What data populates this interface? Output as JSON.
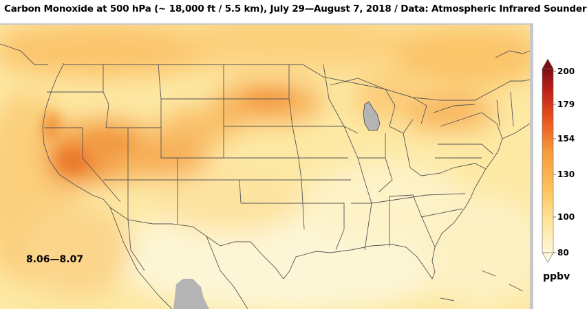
{
  "title": "Carbon Monoxide at 500 hPa (~ 18,000 ft / 5.5 km), July 29—August 7, 2018 / Data: Atmospheric Infrared Sounder",
  "date_label": "8.06—8.07",
  "colorbar": {
    "unit": "ppbv",
    "ticks": [
      "200",
      "179",
      "154",
      "130",
      "100",
      "80"
    ],
    "tick_values": [
      200,
      179,
      154,
      130,
      100,
      80
    ],
    "min": 80,
    "max": 200,
    "colors": [
      "#fdf6d8",
      "#fde69a",
      "#fdc25a",
      "#f79a3a",
      "#e8561e",
      "#c0201a",
      "#7d0d12"
    ],
    "extend": "both"
  },
  "colors": {
    "water_gray": "#b4b4b4",
    "border": "#444444",
    "background": "#ffffff"
  }
}
